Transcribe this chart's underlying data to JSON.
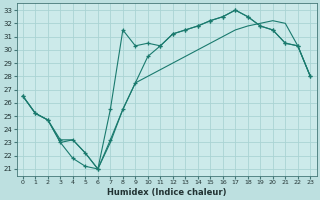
{
  "xlabel": "Humidex (Indice chaleur)",
  "bg_color": "#bde0e0",
  "plot_bg_color": "#cceaea",
  "grid_color": "#aad4d4",
  "line_color": "#1a7a6e",
  "xlim": [
    -0.5,
    23.5
  ],
  "ylim": [
    20.5,
    33.5
  ],
  "xticks": [
    0,
    1,
    2,
    3,
    4,
    5,
    6,
    7,
    8,
    9,
    10,
    11,
    12,
    13,
    14,
    15,
    16,
    17,
    18,
    19,
    20,
    21,
    22,
    23
  ],
  "yticks": [
    21,
    22,
    23,
    24,
    25,
    26,
    27,
    28,
    29,
    30,
    31,
    32,
    33
  ],
  "line1_x": [
    0,
    1,
    2,
    3,
    4,
    5,
    6,
    7,
    8,
    9,
    10,
    11,
    12,
    13,
    14,
    15,
    16,
    17,
    18,
    19,
    20,
    21,
    22,
    23
  ],
  "line1_y": [
    26.5,
    25.2,
    24.7,
    23.0,
    21.8,
    21.2,
    21.0,
    25.5,
    31.5,
    30.3,
    30.5,
    30.3,
    31.2,
    31.5,
    31.8,
    32.2,
    32.5,
    33.0,
    32.5,
    31.8,
    31.5,
    30.5,
    30.3,
    28.0
  ],
  "line2_x": [
    0,
    1,
    2,
    3,
    4,
    5,
    6,
    7,
    8,
    9,
    10,
    11,
    12,
    13,
    14,
    15,
    16,
    17,
    18,
    19,
    20,
    21,
    22,
    23
  ],
  "line2_y": [
    26.5,
    25.2,
    24.7,
    23.2,
    23.2,
    22.2,
    21.0,
    23.2,
    25.5,
    27.5,
    29.5,
    30.3,
    31.2,
    31.5,
    31.8,
    32.2,
    32.5,
    33.0,
    32.5,
    31.8,
    31.5,
    30.5,
    30.3,
    28.0
  ],
  "line3_x": [
    0,
    1,
    2,
    3,
    4,
    5,
    6,
    7,
    8,
    9,
    10,
    11,
    12,
    13,
    14,
    15,
    16,
    17,
    18,
    19,
    20,
    21,
    22,
    23
  ],
  "line3_y": [
    26.5,
    25.2,
    24.7,
    23.0,
    23.2,
    22.2,
    21.0,
    23.0,
    25.5,
    27.5,
    28.0,
    28.5,
    29.0,
    29.5,
    30.0,
    30.5,
    31.0,
    31.5,
    31.8,
    32.0,
    32.2,
    32.0,
    30.3,
    28.0
  ]
}
